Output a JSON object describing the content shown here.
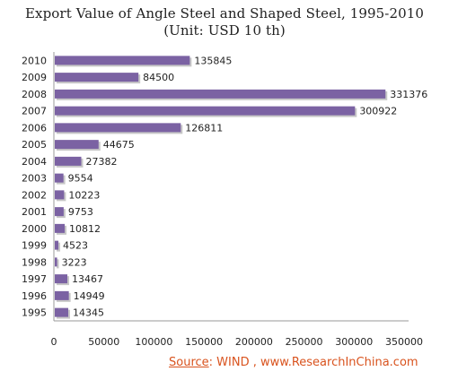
{
  "chart_data": {
    "type": "bar",
    "orientation": "horizontal",
    "title": "Export Value of Angle Steel and Shaped Steel, 1995-2010",
    "subtitle": "(Unit: USD 10 th)",
    "categories": [
      "2010",
      "2009",
      "2008",
      "2007",
      "2006",
      "2005",
      "2004",
      "2003",
      "2002",
      "2001",
      "2000",
      "1999",
      "1998",
      "1997",
      "1996",
      "1995"
    ],
    "values": [
      135845,
      84500,
      331376,
      300922,
      126811,
      44675,
      27382,
      9554,
      10223,
      9753,
      10812,
      4523,
      3223,
      13467,
      14949,
      14345
    ],
    "data_labels": [
      "135845",
      "84500",
      "331376",
      "300922",
      "126811",
      "44675",
      "27382",
      "9554",
      "10223",
      "9753",
      "10812",
      "4523",
      "3223",
      "13467",
      "14949",
      "14345"
    ],
    "xlim": [
      0,
      350000
    ],
    "xticks": [
      0,
      50000,
      100000,
      150000,
      200000,
      250000,
      300000,
      350000
    ],
    "xtick_labels": [
      "0",
      "50000",
      "100000",
      "150000",
      "200000",
      "250000",
      "300000",
      "350000"
    ],
    "grid": false,
    "bar_color": "#7b62a3",
    "bar_shadow_color": "#c7c7c7"
  },
  "source": {
    "label": "Source",
    "text": ": WIND , www.ResearchInChina.com"
  }
}
